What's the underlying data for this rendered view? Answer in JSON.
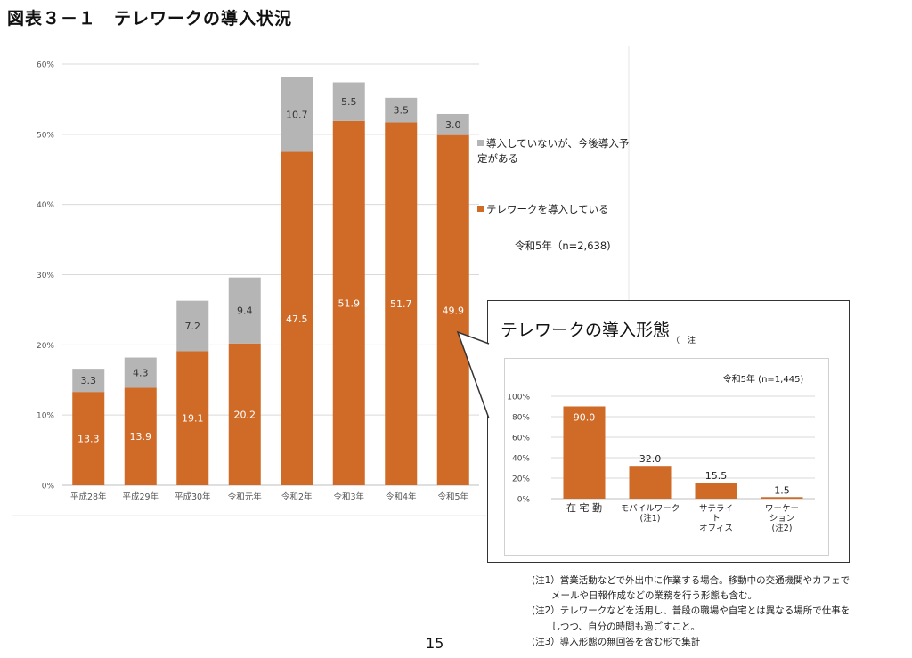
{
  "page": {
    "title": "図表３－１　テレワークの導入状況",
    "page_number": "15",
    "note_fragment": "（　注"
  },
  "colors": {
    "orange": "#cf6a27",
    "gray": "#b5b5b5",
    "grid": "#d9d9d9",
    "axis": "#bfbfbf"
  },
  "chart_data": [
    {
      "type": "bar",
      "stacked": true,
      "categories": [
        "平成28年",
        "平成29年",
        "平成30年",
        "令和元年",
        "令和2年",
        "令和3年",
        "令和4年",
        "令和5年"
      ],
      "series": [
        {
          "name": "テレワークを導入している",
          "values": [
            13.3,
            13.9,
            19.1,
            20.2,
            47.5,
            51.9,
            51.7,
            49.9
          ],
          "labels": [
            "13.3",
            "13.9",
            "19.1",
            "20.2",
            "47.5",
            "51.9",
            "51.7",
            "49.9"
          ]
        },
        {
          "name": "導入していないが、今後導入予定がある",
          "values": [
            3.3,
            4.3,
            7.2,
            9.4,
            10.7,
            5.5,
            3.5,
            3.0
          ],
          "labels": [
            "3.3",
            "4.3",
            "7.2",
            "9.4",
            "10.7",
            "5.5",
            "3.5",
            "3.0"
          ]
        }
      ],
      "ylim": [
        0,
        60
      ],
      "yticks": [
        "0%",
        "10%",
        "20%",
        "30%",
        "40%",
        "50%",
        "60%"
      ],
      "grid": true,
      "legend": {
        "position": "right",
        "items": [
          "導入していないが、今後導入予定がある",
          "テレワークを導入している"
        ]
      },
      "note": "令和5年（n=2,638)"
    },
    {
      "type": "bar",
      "title": "テレワークの導入形態",
      "categories": [
        [
          "在 宅 勤"
        ],
        [
          "モバイルワーク",
          "(注1)"
        ],
        [
          "サテライ",
          "ト",
          "オフィス"
        ],
        [
          "ワーケー",
          "ション",
          "(注2)"
        ]
      ],
      "values": [
        90.0,
        32.0,
        15.5,
        1.5
      ],
      "labels": [
        "90.0",
        "32.0",
        "15.5",
        "1.5"
      ],
      "ylim": [
        0,
        100
      ],
      "yticks": [
        "0%",
        "20%",
        "40%",
        "60%",
        "80%",
        "100%"
      ],
      "grid": true,
      "note": "令和5年 (n=1,445)"
    }
  ],
  "notes": [
    {
      "label": "(注1）",
      "lines": [
        "営業活動などで外出中に作業する場合。移動中の交通機関やカフェで",
        "メールや日報作成などの業務を行う形態も含む。"
      ]
    },
    {
      "label": "(注2）",
      "lines": [
        "テレワークなどを活用し、普段の職場や自宅とは異なる場所で仕事を",
        "しつつ、自分の時間も過ごすこと。"
      ]
    },
    {
      "label": "(注3）",
      "lines": [
        "導入形態の無回答を含む形で集計"
      ]
    }
  ]
}
